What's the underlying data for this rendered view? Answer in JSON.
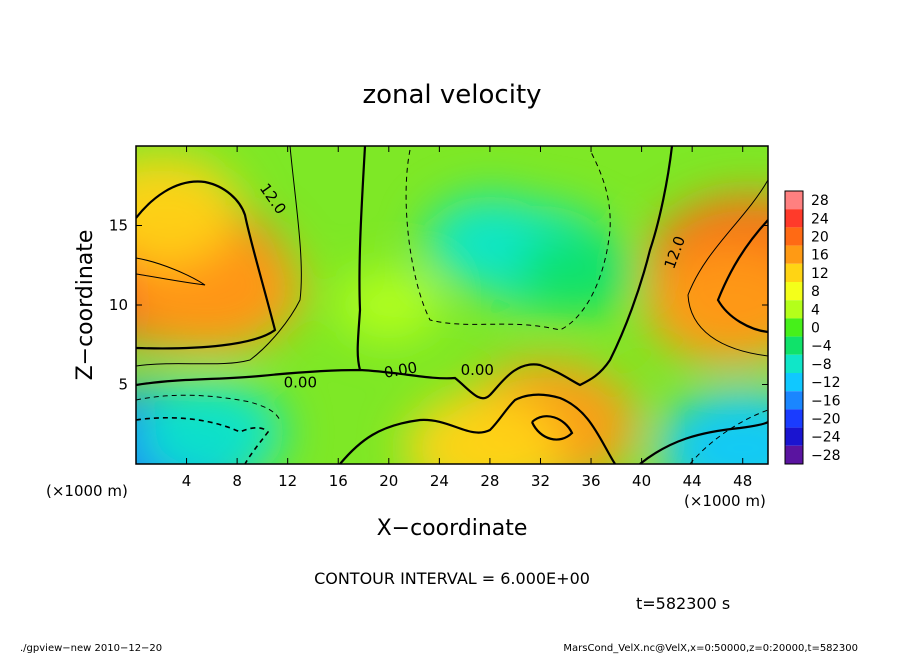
{
  "chart_data": {
    "type": "heatmap",
    "title": "zonal velocity",
    "xlabel": "X−coordinate",
    "ylabel": "Z−coordinate",
    "x_unit": "(×1000 m)",
    "z_unit": "(×1000 m)",
    "xlim": [
      0,
      50
    ],
    "ylim": [
      0,
      20
    ],
    "x_ticks": [
      "4",
      "8",
      "12",
      "16",
      "20",
      "24",
      "28",
      "32",
      "36",
      "40",
      "44",
      "48"
    ],
    "y_ticks": [
      "5",
      "10",
      "15"
    ],
    "colorbar": {
      "levels": [
        "28",
        "24",
        "20",
        "16",
        "12",
        "8",
        "4",
        "0",
        "−4",
        "−8",
        "−12",
        "−16",
        "−20",
        "−24",
        "−28"
      ],
      "colors": [
        "#ff8080",
        "#ff3a2a",
        "#ff6a14",
        "#ff9a14",
        "#ffd414",
        "#f4ff1a",
        "#b4ff1a",
        "#46f01a",
        "#10e26a",
        "#10e6c8",
        "#10c8ff",
        "#1a86ff",
        "#1a3cff",
        "#1a14d0",
        "#5a14a0"
      ]
    },
    "contour_labels": [
      "12.0",
      "0.00",
      "0.00",
      "0.00",
      "12.0"
    ],
    "contour_interval": "CONTOUR INTERVAL = 6.000E+00",
    "time": "t=582300 s",
    "hotspots": [
      {
        "x": 3.5,
        "z": 12.0,
        "value": 22
      },
      {
        "x": 6.0,
        "z": 11.0,
        "value": 16
      },
      {
        "x": 2.0,
        "z": 16.0,
        "value": 12
      },
      {
        "x": 48.5,
        "z": 12.5,
        "value": 20
      },
      {
        "x": 47.0,
        "z": 10.0,
        "value": 14
      },
      {
        "x": 32.5,
        "z": 2.5,
        "value": 16
      },
      {
        "x": 27.5,
        "z": 1.0,
        "value": 12
      },
      {
        "x": 32.0,
        "z": 13.0,
        "value": -10
      },
      {
        "x": 28.0,
        "z": 14.0,
        "value": -7
      },
      {
        "x": 35.0,
        "z": 12.0,
        "value": -6
      },
      {
        "x": 2.0,
        "z": 0.8,
        "value": -18
      },
      {
        "x": 6.0,
        "z": 2.0,
        "value": -10
      },
      {
        "x": 48.0,
        "z": 1.0,
        "value": -14
      },
      {
        "x": 20.0,
        "z": 10.0,
        "value": 2
      }
    ]
  },
  "footer": {
    "left": "./gpview−new  2010−12−20",
    "right": "MarsCond_VelX.nc@VelX,x=0:50000,z=0:20000,t=582300"
  },
  "colors": {
    "contour": "#000000",
    "background": "#ffffff"
  }
}
